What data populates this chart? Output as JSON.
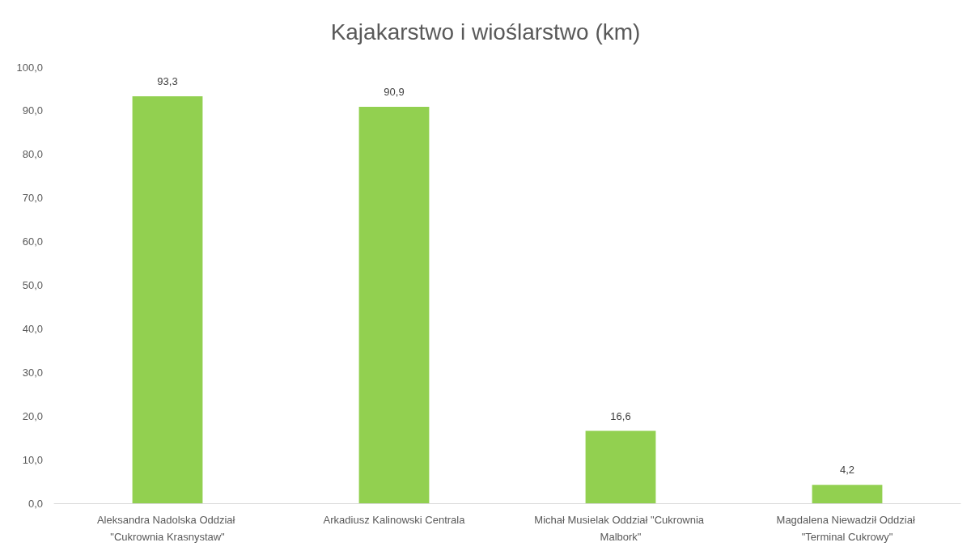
{
  "chart_data": {
    "type": "bar",
    "title": "Kajakarstwo i wioślarstwo (km)",
    "categories": [
      "Aleksandra Nadolska Oddział \"Cukrownia Krasnystaw\"",
      "Arkadiusz Kalinowski Centrala",
      "Michał Musielak Oddział \"Cukrownia Malbork\"",
      "Magdalena Niewadził Oddział \"Terminal Cukrowy\""
    ],
    "values": [
      93.3,
      90.9,
      16.6,
      4.2
    ],
    "value_labels": [
      "93,3",
      "90,9",
      "16,6",
      "4,2"
    ],
    "color": "#92d050",
    "ylim": [
      0,
      100
    ],
    "yticks": [
      {
        "value": 0,
        "label": "0,0"
      },
      {
        "value": 10,
        "label": "10,0"
      },
      {
        "value": 20,
        "label": "20,0"
      },
      {
        "value": 30,
        "label": "30,0"
      },
      {
        "value": 40,
        "label": "40,0"
      },
      {
        "value": 50,
        "label": "50,0"
      },
      {
        "value": 60,
        "label": "60,0"
      },
      {
        "value": 70,
        "label": "70,0"
      },
      {
        "value": 80,
        "label": "80,0"
      },
      {
        "value": 90,
        "label": "90,0"
      },
      {
        "value": 100,
        "label": "100,0"
      }
    ],
    "grid": false
  }
}
